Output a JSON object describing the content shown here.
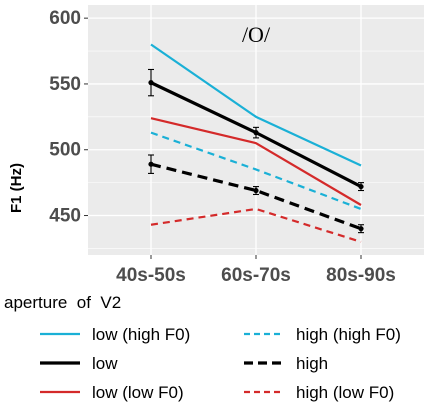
{
  "chart_data": {
    "type": "line",
    "annotation": "/O/",
    "ylabel": "F1 (Hz)",
    "xlabel": "",
    "categories": [
      "40s-50s",
      "60s-70s",
      "80s-90s"
    ],
    "yticks": [
      450,
      500,
      550,
      600
    ],
    "ylim": [
      420,
      610
    ],
    "grid": true,
    "legend": {
      "title": "aperture  of  V2",
      "placement": "bottom"
    },
    "series": [
      {
        "name": "low (high F0)",
        "color": "#1ab0d6",
        "dash": "solid",
        "width": "normal",
        "values": [
          580,
          525,
          488
        ]
      },
      {
        "name": "low",
        "color": "#000000",
        "dash": "solid",
        "width": "thick",
        "values": [
          551,
          513,
          472
        ],
        "errors": [
          10,
          4,
          3
        ]
      },
      {
        "name": "low (low F0)",
        "color": "#d42a2a",
        "dash": "solid",
        "width": "normal",
        "values": [
          524,
          505,
          458
        ]
      },
      {
        "name": "high (high F0)",
        "color": "#1ab0d6",
        "dash": "dashed",
        "width": "normal",
        "values": [
          513,
          485,
          455
        ]
      },
      {
        "name": "high",
        "color": "#000000",
        "dash": "dashed",
        "width": "thick",
        "values": [
          489,
          469,
          440
        ],
        "errors": [
          7,
          3,
          3
        ]
      },
      {
        "name": "high (low F0)",
        "color": "#d42a2a",
        "dash": "dashed",
        "width": "normal",
        "values": [
          443,
          455,
          430
        ]
      }
    ]
  }
}
